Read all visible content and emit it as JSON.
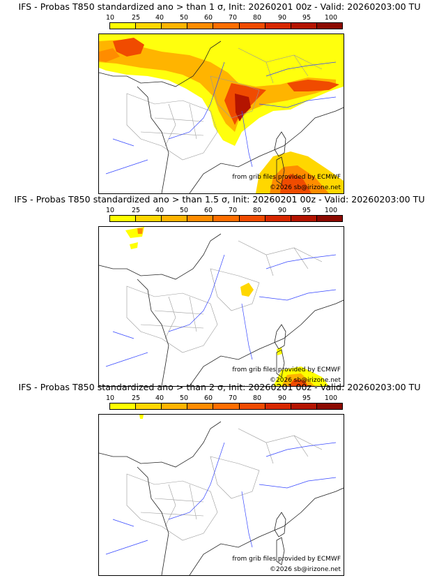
{
  "colorbar": {
    "ticks": [
      "10",
      "25",
      "40",
      "50",
      "60",
      "70",
      "80",
      "90",
      "95",
      "100"
    ],
    "colors": [
      "#ffff00",
      "#ffd700",
      "#ffb400",
      "#ff8c00",
      "#ff6e00",
      "#f04b00",
      "#d72800",
      "#b41400",
      "#8c0a00"
    ]
  },
  "panels": [
    {
      "title": "IFS - Probas T850  standardized ano > than 1 σ, Init: 20260201 00z - Valid: 20260203:00 TU",
      "source": "from grib files provided by ECMWF",
      "copyright": "©2026 sb@irizone.net"
    },
    {
      "title": "IFS - Probas T850  standardized ano > than 1.5 σ, Init: 20260201 00z - Valid: 20260203:00 TU",
      "source": "from grib files provided by ECMWF",
      "copyright": "©2026 sb@irizone.net"
    },
    {
      "title": "IFS - Probas T850  standardized ano > than 2 σ, Init: 20260201 00z - Valid: 20260203:00 TU",
      "source": "from grib files provided by ECMWF",
      "copyright": "©2026 sb@irizone.net"
    }
  ]
}
